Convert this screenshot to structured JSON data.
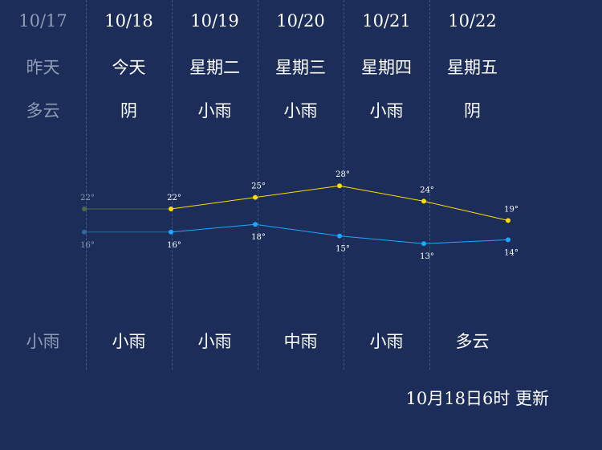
{
  "days": [
    {
      "date": "10/17",
      "day": "昨天",
      "weather_day": "多云",
      "weather_night": "小雨",
      "high": "22°",
      "low": "16°",
      "past": true
    },
    {
      "date": "10/18",
      "day": "今天",
      "weather_day": "阴",
      "weather_night": "小雨",
      "high": "22°",
      "low": "16°",
      "past": false
    },
    {
      "date": "10/19",
      "day": "星期二",
      "weather_day": "小雨",
      "weather_night": "小雨",
      "high": "25°",
      "low": "18°",
      "past": false
    },
    {
      "date": "10/20",
      "day": "星期三",
      "weather_day": "小雨",
      "weather_night": "中雨",
      "high": "28°",
      "low": "15°",
      "past": false
    },
    {
      "date": "10/21",
      "day": "星期四",
      "weather_day": "小雨",
      "weather_night": "小雨",
      "high": "24°",
      "low": "13°",
      "past": false
    },
    {
      "date": "10/22",
      "day": "星期五",
      "weather_day": "阴",
      "weather_night": "多云",
      "high": "19°",
      "low": "14°",
      "past": false
    }
  ],
  "chart_data": {
    "type": "line",
    "x": [
      "10/17",
      "10/18",
      "10/19",
      "10/20",
      "10/21",
      "10/22"
    ],
    "series": [
      {
        "values": [
          22,
          22,
          25,
          28,
          24,
          19
        ],
        "color": "#ffdd00"
      },
      {
        "values": [
          16,
          16,
          18,
          15,
          13,
          14
        ],
        "color": "#1ea7ff"
      }
    ],
    "past_color": "#4a6a48",
    "past_low_color": "#2f6a9a"
  },
  "update_text": "10月18日6时 更新"
}
